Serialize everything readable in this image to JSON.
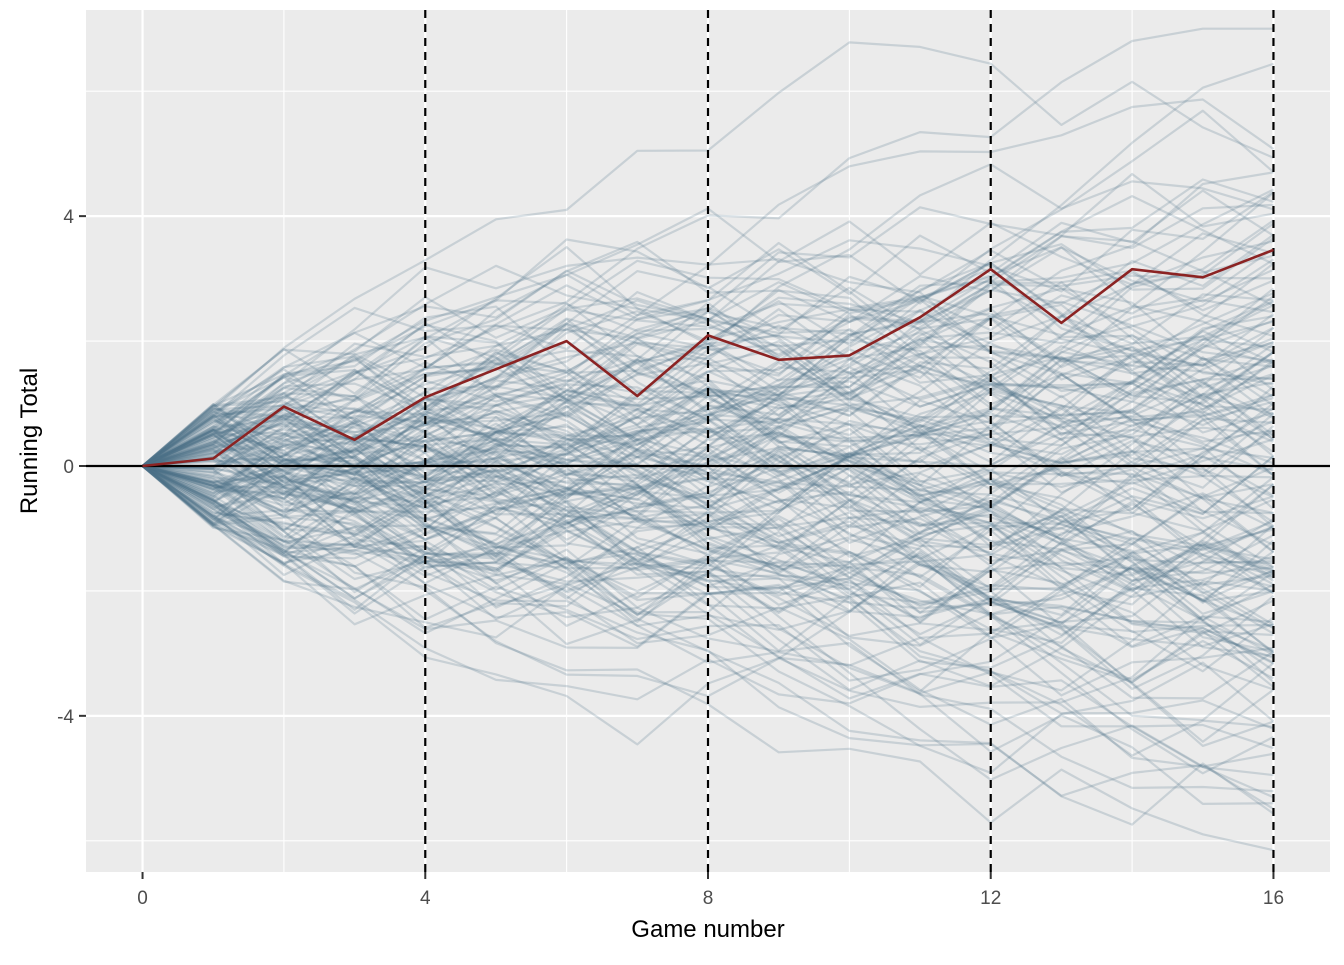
{
  "chart_data": {
    "type": "line",
    "title": "",
    "xlabel": "Game number",
    "ylabel": "Running Total",
    "xlim": [
      -0.8,
      16.8
    ],
    "ylim": [
      -6.5,
      7.3
    ],
    "x_ticks": [
      0,
      4,
      8,
      12,
      16
    ],
    "x_tick_labels": [
      "0",
      "4",
      "8",
      "12",
      "16"
    ],
    "y_ticks": [
      -4,
      0,
      4
    ],
    "y_tick_labels": [
      "-4",
      "0",
      "4"
    ],
    "x_minor_gridlines": [
      2,
      6,
      10,
      14
    ],
    "y_minor_gridlines": [
      -6,
      -2,
      2,
      6
    ],
    "grid": true,
    "legend": "none",
    "reference_lines": {
      "horizontal": [
        {
          "y": 0,
          "style": "solid",
          "color": "#000000"
        }
      ],
      "vertical": [
        {
          "x": 4,
          "style": "dashed",
          "color": "#000000"
        },
        {
          "x": 8,
          "style": "dashed",
          "color": "#000000"
        },
        {
          "x": 12,
          "style": "dashed",
          "color": "#000000"
        },
        {
          "x": 16,
          "style": "dashed",
          "color": "#000000"
        }
      ]
    },
    "colors": {
      "panel_background": "#ebebeb",
      "gridline": "#ffffff",
      "background_series": "#4e7189",
      "highlight_series": "#8b2323"
    },
    "background_series": {
      "description_count": 200,
      "x": [
        0,
        1,
        2,
        3,
        4,
        5,
        6,
        7,
        8,
        9,
        10,
        11,
        12,
        13,
        14,
        15,
        16
      ],
      "start_value": 0,
      "step_range": [
        -1,
        1
      ],
      "approx_final_range": [
        -5.8,
        6.1
      ],
      "opacity": 0.22
    },
    "series": [
      {
        "role": "highlight",
        "x": [
          0,
          1,
          2,
          3,
          4,
          5,
          6,
          7,
          8,
          9,
          10,
          11,
          12,
          13,
          14,
          15,
          16
        ],
        "values": [
          0,
          0.12,
          0.95,
          0.42,
          1.1,
          1.55,
          2.0,
          1.12,
          2.09,
          1.7,
          1.77,
          2.38,
          3.15,
          2.29,
          3.15,
          3.02,
          3.46
        ]
      }
    ]
  }
}
